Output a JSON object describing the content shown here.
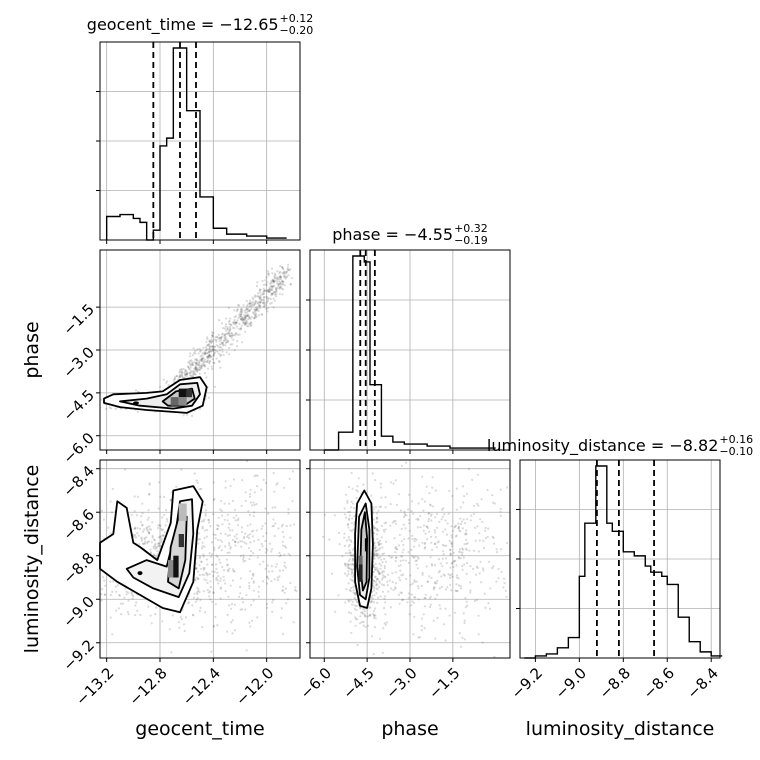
{
  "chart_data": {
    "type": "corner",
    "parameters": [
      "geocent_time",
      "phase",
      "luminosity_distance"
    ],
    "titles": [
      {
        "name": "geocent_time",
        "value": "−12.65",
        "plus": "+0.12",
        "minus": "−0.20"
      },
      {
        "name": "phase",
        "value": "−4.55",
        "plus": "+0.32",
        "minus": "−0.19"
      },
      {
        "name": "luminosity_distance",
        "value": "−8.82",
        "plus": "+0.16",
        "minus": "−0.10"
      }
    ],
    "axes": {
      "geocent_time": {
        "range": [
          -13.25,
          -11.75
        ],
        "ticks": [
          -13.2,
          -12.8,
          -12.4,
          -12.0
        ],
        "tick_labels": [
          "−13.2",
          "−12.8",
          "−12.4",
          "−12.0"
        ]
      },
      "phase": {
        "range": [
          -6.5,
          0.5
        ],
        "ticks": [
          -6.0,
          -4.5,
          -3.0,
          -1.5
        ],
        "tick_labels": [
          "−6.0",
          "−4.5",
          "−3.0",
          "−1.5"
        ]
      },
      "luminosity_distance": {
        "range": [
          -9.27,
          -8.36
        ],
        "ticks": [
          -9.2,
          -9.0,
          -8.8,
          -8.6,
          -8.4
        ],
        "tick_labels": [
          "−9.2",
          "−9.0",
          "−8.8",
          "−8.6",
          "−8.4"
        ]
      }
    },
    "quantiles": {
      "geocent_time": [
        -12.85,
        -12.65,
        -12.53
      ],
      "phase": [
        -4.74,
        -4.55,
        -4.23
      ],
      "luminosity_distance": [
        -8.92,
        -8.82,
        -8.66
      ]
    },
    "histograms": {
      "geocent_time": {
        "bin_edges": [
          -13.2,
          -13.15,
          -13.1,
          -13.05,
          -13.0,
          -12.95,
          -12.9,
          -12.85,
          -12.8,
          -12.75,
          -12.7,
          -12.65,
          -12.6,
          -12.55,
          -12.5,
          -12.45,
          -12.4,
          -12.35,
          -12.3,
          -12.25,
          -12.2,
          -12.15,
          -12.1,
          -12.05,
          -12.0,
          -11.95,
          -11.9,
          -11.85
        ],
        "counts": [
          0.12,
          0.12,
          0.13,
          0.13,
          0.11,
          0.09,
          0.0,
          0.05,
          0.48,
          0.52,
          0.98,
          0.98,
          0.66,
          0.66,
          0.22,
          0.22,
          0.06,
          0.06,
          0.03,
          0.03,
          0.03,
          0.02,
          0.02,
          0.02,
          0.01,
          0.01,
          0.01
        ]
      },
      "phase": {
        "bin_edges": [
          -6.0,
          -5.5,
          -5.0,
          -4.8,
          -4.6,
          -4.4,
          -4.2,
          -4.0,
          -3.6,
          -3.2,
          -2.8,
          -2.4,
          -2.0,
          -1.6,
          -1.2,
          -0.8,
          -0.4,
          0.0
        ],
        "counts": [
          0.0,
          0.09,
          0.98,
          0.98,
          0.95,
          0.33,
          0.33,
          0.07,
          0.04,
          0.03,
          0.03,
          0.02,
          0.02,
          0.01,
          0.01,
          0.01,
          0.01
        ]
      },
      "luminosity_distance": {
        "bin_edges": [
          -9.25,
          -9.2,
          -9.15,
          -9.1,
          -9.05,
          -9.0,
          -8.975,
          -8.95,
          -8.925,
          -8.9,
          -8.875,
          -8.85,
          -8.825,
          -8.8,
          -8.775,
          -8.75,
          -8.725,
          -8.7,
          -8.675,
          -8.65,
          -8.625,
          -8.6,
          -8.575,
          -8.55,
          -8.5,
          -8.45,
          -8.4,
          -8.35
        ],
        "counts": [
          0.0,
          0.01,
          0.02,
          0.05,
          0.1,
          0.4,
          0.66,
          0.66,
          0.94,
          0.94,
          0.66,
          0.62,
          0.62,
          0.52,
          0.52,
          0.5,
          0.5,
          0.45,
          0.42,
          0.42,
          0.4,
          0.36,
          0.36,
          0.2,
          0.08,
          0.03,
          0.01
        ]
      }
    },
    "contour_levels": [
      "inner",
      "middle",
      "outer"
    ],
    "ylabel_left": [
      "phase",
      "luminosity_distance"
    ],
    "xlabel_bottom": [
      "geocent_time",
      "phase",
      "luminosity_distance"
    ],
    "grid": true
  }
}
